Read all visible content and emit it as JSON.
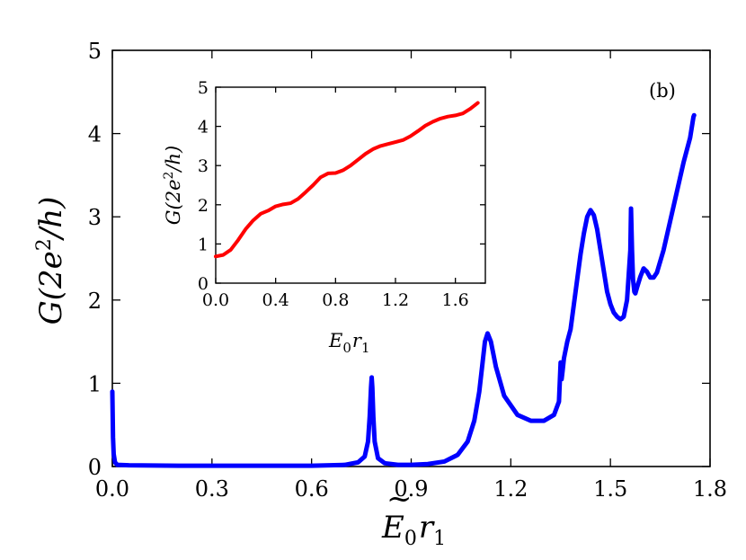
{
  "chart_data": [
    {
      "type": "line",
      "role": "main",
      "panel_label": "(b)",
      "xlabel": "Ẽ₀r₁",
      "xlabel_parts": {
        "base": "E",
        "tilde": "~",
        "sub0": "0",
        "r": "r",
        "sub1": "1"
      },
      "ylabel": "G(2e²/h)",
      "ylabel_parts": {
        "pre": "G(2e",
        "sup": "2",
        "post": "/h)"
      },
      "xlim": [
        0.0,
        1.8
      ],
      "ylim": [
        0,
        5
      ],
      "xticks": [
        "0.0",
        "0.3",
        "0.6",
        "0.9",
        "1.2",
        "1.5",
        "1.8"
      ],
      "xtick_values": [
        0.0,
        0.3,
        0.6,
        0.9,
        1.2,
        1.5,
        1.8
      ],
      "yticks": [
        "0",
        "1",
        "2",
        "3",
        "4",
        "5"
      ],
      "ytick_values": [
        0,
        1,
        2,
        3,
        4,
        5
      ],
      "grid": false,
      "series": [
        {
          "name": "G",
          "color": "#0000ff",
          "x": [
            0.0,
            0.002,
            0.004,
            0.008,
            0.015,
            0.05,
            0.2,
            0.4,
            0.6,
            0.7,
            0.74,
            0.76,
            0.77,
            0.775,
            0.779,
            0.781,
            0.783,
            0.786,
            0.79,
            0.8,
            0.82,
            0.86,
            0.9,
            0.95,
            1.0,
            1.04,
            1.07,
            1.09,
            1.105,
            1.115,
            1.122,
            1.13,
            1.14,
            1.155,
            1.18,
            1.22,
            1.26,
            1.3,
            1.33,
            1.345,
            1.35,
            1.353,
            1.356,
            1.36,
            1.37,
            1.38,
            1.39,
            1.4,
            1.41,
            1.42,
            1.43,
            1.44,
            1.45,
            1.46,
            1.47,
            1.48,
            1.49,
            1.5,
            1.51,
            1.52,
            1.53,
            1.54,
            1.55,
            1.555,
            1.56,
            1.562,
            1.565,
            1.568,
            1.572,
            1.575,
            1.58,
            1.59,
            1.6,
            1.61,
            1.62,
            1.63,
            1.64,
            1.66,
            1.68,
            1.7,
            1.72,
            1.74,
            1.75,
            1.752
          ],
          "y": [
            0.9,
            0.35,
            0.15,
            0.05,
            0.02,
            0.015,
            0.01,
            0.01,
            0.01,
            0.02,
            0.05,
            0.12,
            0.3,
            0.6,
            0.95,
            1.07,
            0.95,
            0.6,
            0.3,
            0.1,
            0.04,
            0.02,
            0.02,
            0.03,
            0.06,
            0.14,
            0.3,
            0.55,
            0.9,
            1.25,
            1.5,
            1.6,
            1.5,
            1.2,
            0.85,
            0.62,
            0.55,
            0.55,
            0.62,
            0.78,
            1.25,
            1.05,
            1.15,
            1.3,
            1.5,
            1.65,
            1.95,
            2.25,
            2.55,
            2.8,
            3.0,
            3.08,
            3.02,
            2.85,
            2.6,
            2.35,
            2.1,
            1.95,
            1.85,
            1.8,
            1.77,
            1.8,
            2.0,
            2.3,
            2.6,
            3.1,
            2.6,
            2.25,
            2.1,
            2.08,
            2.15,
            2.28,
            2.38,
            2.34,
            2.27,
            2.27,
            2.33,
            2.6,
            2.95,
            3.3,
            3.65,
            3.95,
            4.2,
            4.22
          ]
        }
      ]
    },
    {
      "type": "line",
      "role": "inset",
      "xlabel": "E₀r₁",
      "xlabel_parts": {
        "base": "E",
        "sub0": "0",
        "r": "r",
        "sub1": "1"
      },
      "ylabel": "G(2e²/h)",
      "ylabel_parts": {
        "pre": "G(2e",
        "sup": "2",
        "post": "/h)"
      },
      "xlim": [
        0.0,
        1.8
      ],
      "ylim": [
        0,
        5
      ],
      "xticks": [
        "0.0",
        "0.4",
        "0.8",
        "1.2",
        "1.6"
      ],
      "xtick_values": [
        0.0,
        0.4,
        0.8,
        1.2,
        1.6
      ],
      "yticks": [
        "0",
        "1",
        "2",
        "3",
        "4",
        "5"
      ],
      "ytick_values": [
        0,
        1,
        2,
        3,
        4,
        5
      ],
      "grid": false,
      "series": [
        {
          "name": "G",
          "color": "#ff0000",
          "x": [
            0.0,
            0.05,
            0.1,
            0.15,
            0.2,
            0.25,
            0.3,
            0.35,
            0.4,
            0.45,
            0.5,
            0.55,
            0.6,
            0.65,
            0.7,
            0.75,
            0.8,
            0.85,
            0.9,
            0.95,
            1.0,
            1.05,
            1.1,
            1.15,
            1.2,
            1.25,
            1.3,
            1.35,
            1.4,
            1.45,
            1.5,
            1.55,
            1.6,
            1.65,
            1.7,
            1.75
          ],
          "y": [
            0.68,
            0.72,
            0.85,
            1.1,
            1.38,
            1.6,
            1.77,
            1.85,
            1.96,
            2.01,
            2.04,
            2.15,
            2.32,
            2.5,
            2.7,
            2.8,
            2.81,
            2.88,
            3.0,
            3.15,
            3.3,
            3.42,
            3.5,
            3.55,
            3.6,
            3.65,
            3.75,
            3.88,
            4.02,
            4.12,
            4.2,
            4.25,
            4.28,
            4.33,
            4.45,
            4.6
          ]
        }
      ]
    }
  ]
}
